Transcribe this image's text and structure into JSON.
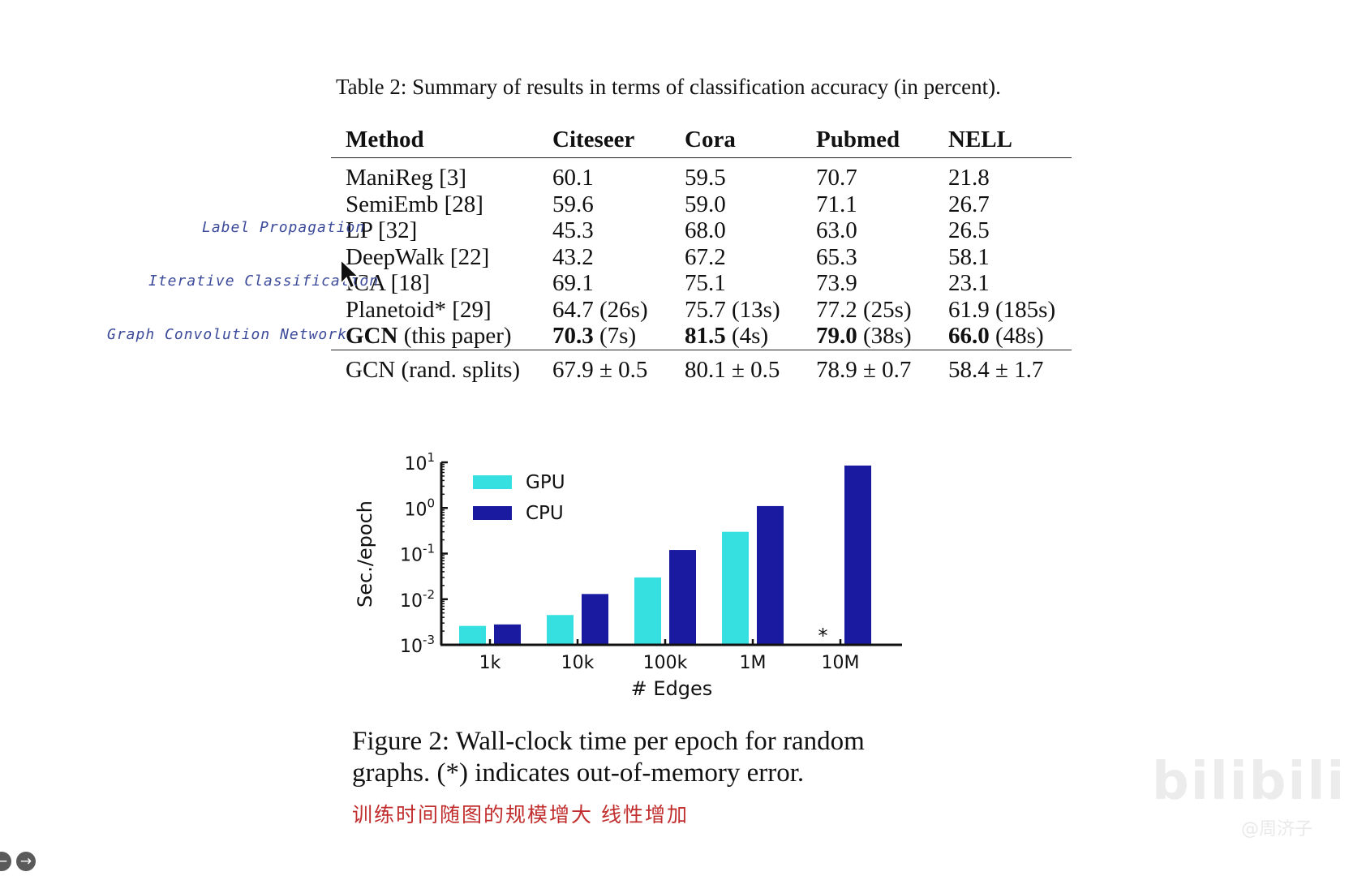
{
  "table": {
    "caption": "Table 2: Summary of results in terms of classification accuracy (in percent).",
    "headers": [
      "Method",
      "Citeseer",
      "Cora",
      "Pubmed",
      "NELL"
    ],
    "rows": [
      [
        "ManiReg [3]",
        "60.1",
        "59.5",
        "70.7",
        "21.8"
      ],
      [
        "SemiEmb [28]",
        "59.6",
        "59.0",
        "71.1",
        "26.7"
      ],
      [
        "LP [32]",
        "45.3",
        "68.0",
        "63.0",
        "26.5"
      ],
      [
        "DeepWalk [22]",
        "43.2",
        "67.2",
        "65.3",
        "58.1"
      ],
      [
        "ICA [18]",
        "69.1",
        "75.1",
        "73.9",
        "23.1"
      ],
      [
        "Planetoid* [29]",
        "64.7 (26s)",
        "75.7 (13s)",
        "77.2 (25s)",
        "61.9 (185s)"
      ]
    ],
    "gcn_row": {
      "method_bold": "GCN",
      "method_rest": " (this paper)",
      "cells": [
        {
          "bold": "70.3",
          "rest": " (7s)"
        },
        {
          "bold": "81.5",
          "rest": " (4s)"
        },
        {
          "bold": "79.0",
          "rest": " (38s)"
        },
        {
          "bold": "66.0",
          "rest": " (48s)"
        }
      ]
    },
    "rand_row": [
      "GCN (rand. splits)",
      "67.9 ± 0.5",
      "80.1 ± 0.5",
      "78.9 ± 0.7",
      "58.4 ± 1.7"
    ]
  },
  "annotations": {
    "lp": "Label Propagation",
    "ica": "Iterative Classification",
    "gcn": "Graph Convolution Network",
    "chinese_note": "训练时间随图的规模增大 线性增加"
  },
  "figure": {
    "caption_line1": "Figure 2:  Wall-clock time per epoch for random",
    "caption_line2": "graphs. (*) indicates out-of-memory error."
  },
  "chart_data": {
    "type": "bar",
    "xlabel": "# Edges",
    "ylabel": "Sec./epoch",
    "categories": [
      "1k",
      "10k",
      "100k",
      "1M",
      "10M"
    ],
    "yscale": "log",
    "ylim": [
      0.001,
      10
    ],
    "yticks": [
      {
        "base": "10",
        "exp": "-3"
      },
      {
        "base": "10",
        "exp": "-2"
      },
      {
        "base": "10",
        "exp": "-1"
      },
      {
        "base": "10",
        "exp": "0"
      },
      {
        "base": "10",
        "exp": "1"
      }
    ],
    "legend_position": "top-left",
    "series": [
      {
        "name": "GPU",
        "color": "#36e0e0",
        "values": [
          0.0026,
          0.0045,
          0.03,
          0.3,
          null
        ]
      },
      {
        "name": "CPU",
        "color": "#1a1aa0",
        "values": [
          0.0028,
          0.013,
          0.12,
          1.1,
          8.5
        ]
      }
    ],
    "annotations": [
      {
        "category": "10M",
        "text": "*"
      }
    ]
  },
  "ui": {
    "watermark": "bilibili 独家",
    "watermark_user": "@周济子",
    "next_icon": "→",
    "prev_icon": "←"
  }
}
